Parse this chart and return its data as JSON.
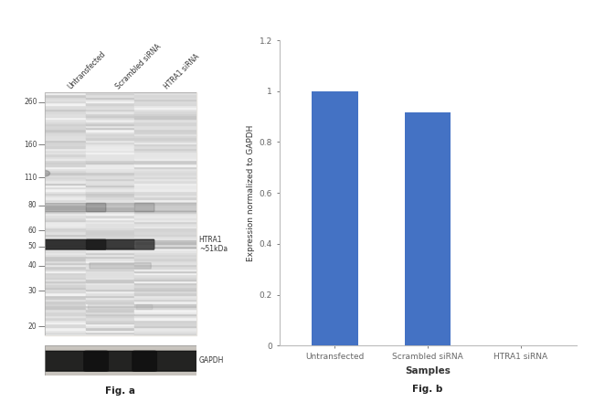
{
  "fig_a": {
    "label": "Fig. a",
    "mw_markers": [
      260,
      160,
      110,
      80,
      60,
      50,
      40,
      30,
      20
    ],
    "htra1_label": "HTRA1\n~51kDa",
    "gapdh_label": "GAPDH",
    "lane_labels": [
      "Untransfected",
      "Scrambled siRNA",
      "HTRA1 siRNA"
    ]
  },
  "fig_b": {
    "label": "Fig. b",
    "categories": [
      "Untransfected",
      "Scrambled siRNA",
      "HTRA1 siRNA"
    ],
    "values": [
      1.0,
      0.915,
      0.0
    ],
    "bar_color": "#4472C4",
    "xlabel": "Samples",
    "ylabel": "Expression normalized to GAPDH",
    "ylim": [
      0,
      1.2
    ],
    "yticks": [
      0,
      0.2,
      0.4,
      0.6,
      0.8,
      1.0,
      1.2
    ],
    "bar_width": 0.5
  },
  "background_color": "#ffffff"
}
